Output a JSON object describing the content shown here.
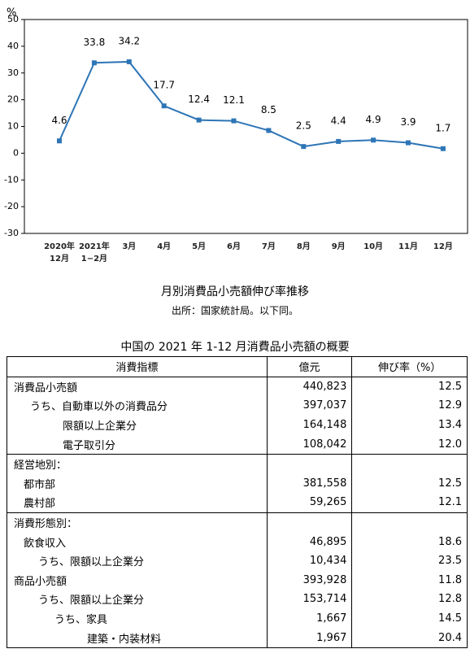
{
  "chart_data": {
    "type": "line",
    "title": "月別消費品小売額伸び率推移",
    "source": "出所：国家統計局。以下同。",
    "ylabel": "%",
    "categories": [
      "2020年\n12月",
      "2021年\n1−2月",
      "3月",
      "4月",
      "5月",
      "6月",
      "7月",
      "8月",
      "9月",
      "10月",
      "11月",
      "12月"
    ],
    "values": [
      4.6,
      33.8,
      34.2,
      17.7,
      12.4,
      12.1,
      8.5,
      2.5,
      4.4,
      4.9,
      3.9,
      1.7
    ],
    "color": "#2e75b6",
    "ylim": [
      -30,
      50
    ],
    "yticks": [
      -30,
      -20,
      -10,
      0,
      10,
      20,
      30,
      40,
      50
    ]
  },
  "table": {
    "title": "中国の 2021 年 1-12 月消費品小売額の概要",
    "header": [
      "消費指標",
      "億元",
      "伸び率（%）"
    ],
    "groups": [
      [
        [
          "消費品小売額",
          "440,823",
          "12.5"
        ],
        [
          "うち、自動車以外の消費品分",
          "397,037",
          "12.9"
        ],
        [
          "限額以上企業分",
          "164,148",
          "13.4"
        ],
        [
          "電子取引分",
          "108,042",
          "12.0"
        ]
      ],
      [
        [
          "経営地別："
        ],
        [
          "都市部",
          "381,558",
          "12.5"
        ],
        [
          "農村部",
          "59,265",
          "12.1"
        ]
      ],
      [
        [
          "消費形態別："
        ],
        [
          "飲食収入",
          "46,895",
          "18.6"
        ],
        [
          "うち、限額以上企業分",
          "10,434",
          "23.5"
        ],
        [
          "商品小売額",
          "393,928",
          "11.8"
        ],
        [
          "うち、限額以上企業分",
          "153,714",
          "12.8"
        ],
        [
          "うち、家具",
          "1,667",
          "14.5"
        ],
        [
          "建築・内装材料",
          "1,967",
          "20.4"
        ]
      ]
    ]
  }
}
